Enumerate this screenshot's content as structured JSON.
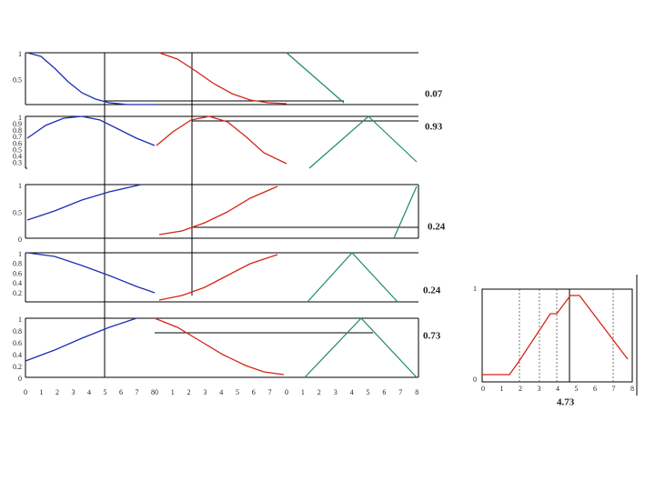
{
  "rows": [
    {
      "yticks": [
        "1",
        "0.5"
      ],
      "output": "0.07"
    },
    {
      "yticks": [
        "1",
        "0.9",
        "0.8",
        "0.7",
        "0.6",
        "0.5",
        "0.4",
        "0.3"
      ],
      "output": "0.93"
    },
    {
      "yticks": [
        "1",
        "0.5",
        "0"
      ],
      "output": "0.24"
    },
    {
      "yticks": [
        "1",
        "0.8",
        "0.6",
        "0.4",
        "0.2"
      ],
      "output": "0.24"
    },
    {
      "yticks": [
        "1",
        "0.8",
        "0.6",
        "0.4",
        "0.2",
        "0"
      ],
      "output": "0.73"
    }
  ],
  "xticks": [
    [
      "0",
      "1",
      "2",
      "3",
      "4",
      "5",
      "6",
      "7",
      "8"
    ],
    [
      "0",
      "1",
      "2",
      "3",
      "4",
      "5",
      "6",
      "7"
    ],
    [
      "0",
      "1",
      "2",
      "3",
      "4",
      "5",
      "6",
      "7",
      "8"
    ]
  ],
  "result": {
    "yticks": [
      "1",
      "0"
    ],
    "xticks": [
      "0",
      "1",
      "2",
      "3",
      "4",
      "5",
      "6",
      "7",
      "8"
    ],
    "output": "4.73"
  }
}
